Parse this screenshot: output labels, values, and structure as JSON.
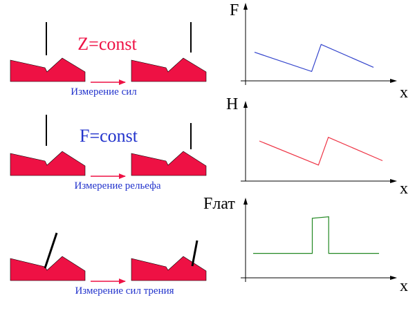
{
  "colors": {
    "sample": "#ee1144",
    "arrow": "#ee1144",
    "caption": "#2233cc",
    "mode_red": "#ee1144",
    "mode_blue": "#2233cc",
    "axis": "#000000",
    "force_curve": "#3344cc",
    "height_curve": "#ee3344",
    "lateral_curve": "#228822"
  },
  "rows": [
    {
      "mode_label": "Z=const",
      "caption": "Измерение сил",
      "y_axis_label": "F",
      "x_axis_label": "x",
      "chart_data": {
        "type": "line",
        "x": [
          0,
          0.48,
          0.56,
          1
        ],
        "y": [
          0.55,
          0.18,
          0.7,
          0.26
        ],
        "ylim": [
          0,
          1.5
        ]
      }
    },
    {
      "mode_label": "F=const",
      "caption": "Измерение рельефа",
      "y_axis_label": "H",
      "x_axis_label": "x",
      "chart_data": {
        "type": "line",
        "x": [
          0,
          0.48,
          0.56,
          1
        ],
        "y": [
          0.55,
          0.22,
          0.6,
          0.28
        ],
        "ylim": [
          0,
          1.1
        ]
      }
    },
    {
      "mode_label": "",
      "caption": "Измерение сил трения",
      "y_axis_label": "Fлат",
      "x_axis_label": "x",
      "chart_data": {
        "type": "line",
        "x": [
          0,
          0.47,
          0.47,
          0.6,
          0.6,
          1
        ],
        "y": [
          0.32,
          0.32,
          0.78,
          0.8,
          0.32,
          0.32
        ],
        "ylim": [
          0,
          1.05
        ]
      }
    }
  ]
}
